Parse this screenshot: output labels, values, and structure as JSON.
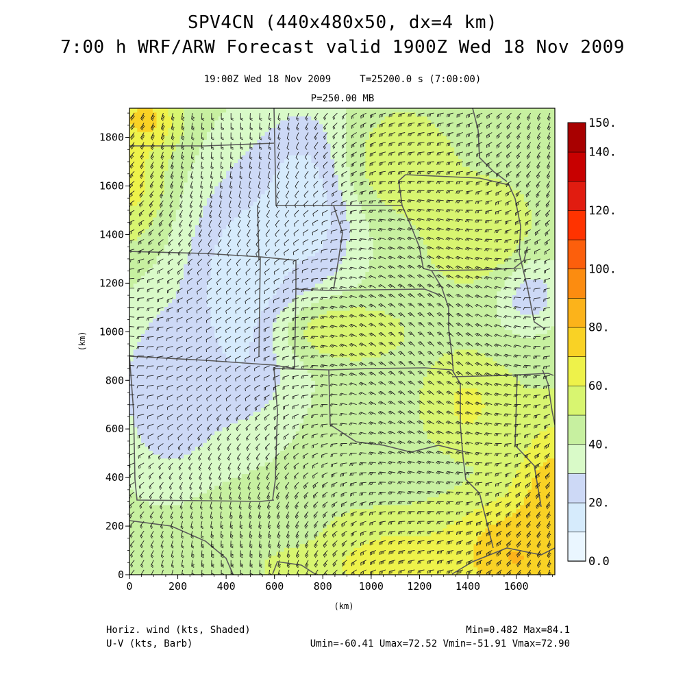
{
  "header": {
    "title_line1": "SPV4CN (440x480x50, dx=4 km)",
    "title_line2": "7:00 h WRF/ARW Forecast valid 1900Z Wed 18 Nov 2009",
    "subtitle_line1": "19:00Z Wed 18 Nov 2009     T=25200.0 s (7:00:00)",
    "subtitle_line2": "P=250.00 MB"
  },
  "footer": {
    "left_line1": "Horiz. wind (kts, Shaded)",
    "left_line2": "U-V (kts, Barb)",
    "right_line1": "Min=0.482 Max=84.1",
    "right_line2": "Umin=-60.41 Umax=72.52 Vmin=-51.91 Vmax=72.90"
  },
  "colors": {
    "levels": [
      "#eaf6ff",
      "#d6ebfc",
      "#cdd9f6",
      "#d9fac8",
      "#c7f0a0",
      "#d8f570",
      "#eef24a",
      "#f9d225",
      "#fcb31a",
      "#fc8c10",
      "#fc5f0c",
      "#ff3300",
      "#e11c10",
      "#c80000",
      "#a80000"
    ]
  },
  "chart_data": {
    "type": "heatmap",
    "xlabel": "(km)",
    "ylabel": "(km)",
    "xlim": [
      0,
      1760
    ],
    "ylim": [
      0,
      1920
    ],
    "xticks": [
      0,
      200,
      400,
      600,
      800,
      1000,
      1200,
      1400,
      1600
    ],
    "yticks": [
      0,
      200,
      400,
      600,
      800,
      1000,
      1200,
      1400,
      1600,
      1800
    ],
    "colorbar": {
      "min": 0,
      "max": 150,
      "step": 10,
      "labels": [
        "0.0",
        "20.",
        "40.",
        "60.",
        "80.",
        "100.",
        "120.",
        "140.",
        "150."
      ],
      "label_values": [
        0,
        20,
        40,
        60,
        80,
        100,
        120,
        140,
        150
      ]
    },
    "field": {
      "name": "Horiz. wind (kts, Shaded)",
      "min": 0.482,
      "max": 84.1,
      "background": 45,
      "features": [
        {
          "x": 1600,
          "y": 80,
          "value": 84,
          "rx": 300,
          "ry": 220
        },
        {
          "x": 1750,
          "y": 300,
          "value": 78,
          "rx": 160,
          "ry": 340
        },
        {
          "x": 1000,
          "y": 80,
          "value": 66,
          "rx": 420,
          "ry": 170
        },
        {
          "x": 60,
          "y": 1860,
          "value": 80,
          "rx": 130,
          "ry": 120
        },
        {
          "x": 20,
          "y": 1620,
          "value": 64,
          "rx": 140,
          "ry": 260
        },
        {
          "x": 470,
          "y": 1150,
          "value": 10,
          "rx": 250,
          "ry": 520
        },
        {
          "x": 740,
          "y": 1550,
          "value": 12,
          "rx": 230,
          "ry": 380
        },
        {
          "x": 160,
          "y": 760,
          "value": 20,
          "rx": 230,
          "ry": 380
        },
        {
          "x": 1640,
          "y": 1180,
          "value": 14,
          "rx": 140,
          "ry": 160
        },
        {
          "x": 880,
          "y": 1000,
          "value": 58,
          "rx": 260,
          "ry": 130
        },
        {
          "x": 1110,
          "y": 1700,
          "value": 58,
          "rx": 220,
          "ry": 220
        },
        {
          "x": 1460,
          "y": 1400,
          "value": 56,
          "rx": 260,
          "ry": 260
        },
        {
          "x": 1400,
          "y": 700,
          "value": 62,
          "rx": 180,
          "ry": 200
        },
        {
          "x": 650,
          "y": 200,
          "value": 48,
          "rx": 300,
          "ry": 160
        }
      ]
    },
    "barbs": {
      "name": "U-V (kts, Barb)",
      "umin": -60.41,
      "umax": 72.52,
      "vmin": -51.91,
      "vmax": 72.9
    }
  }
}
